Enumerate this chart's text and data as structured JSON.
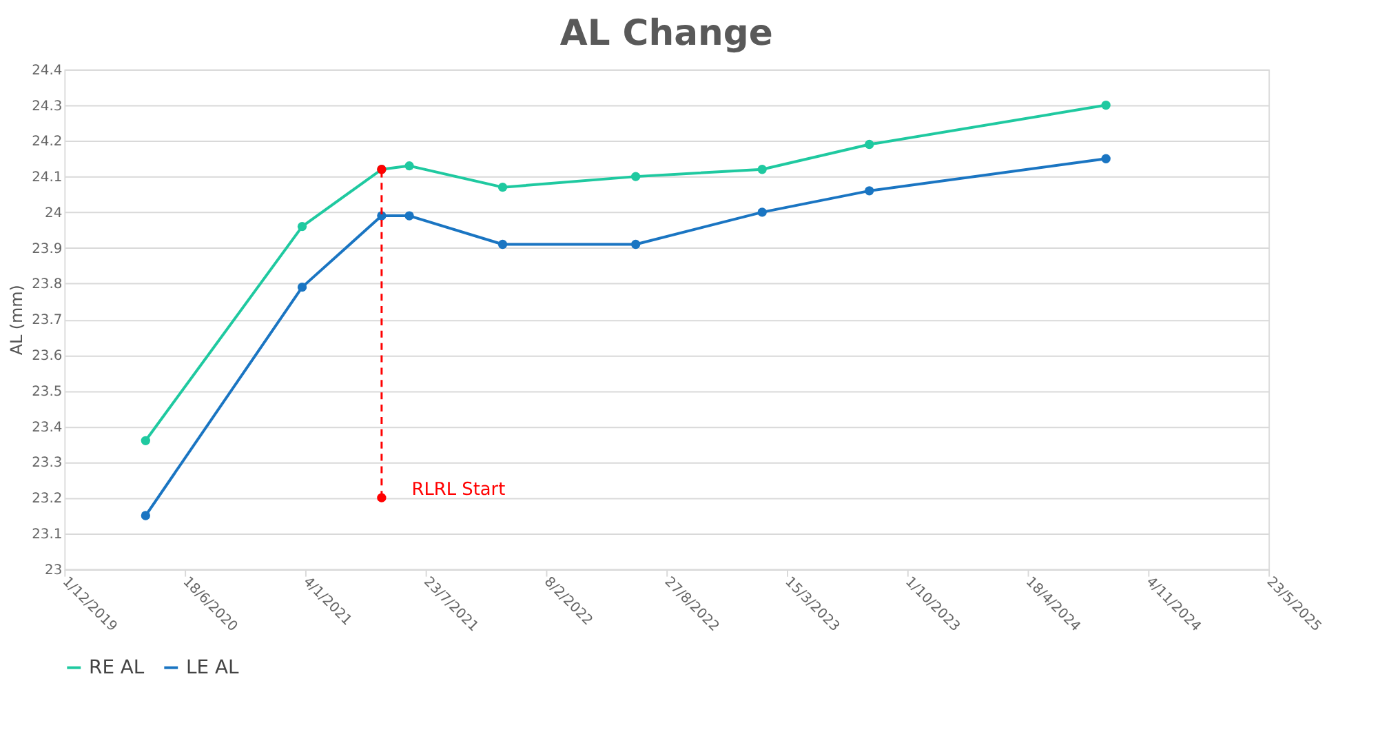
{
  "chart_data": {
    "type": "line",
    "title": "AL Change",
    "ylabel": "AL (mm)",
    "x": [
      "2020-04-14",
      "2020-12-30",
      "2021-05-11",
      "2021-06-26",
      "2021-11-28",
      "2022-07-07",
      "2023-02-02",
      "2023-07-30",
      "2024-08-26"
    ],
    "series": [
      {
        "name": "RE AL",
        "color": "#1fc9a0",
        "values": [
          23.36,
          23.96,
          24.12,
          24.13,
          24.07,
          24.1,
          24.12,
          24.19,
          24.3
        ]
      },
      {
        "name": "LE AL",
        "color": "#1a75c2",
        "values": [
          23.15,
          23.79,
          23.99,
          23.99,
          23.91,
          23.91,
          24.0,
          24.06,
          24.15
        ]
      },
      {
        "name": "RLRL Start",
        "color": "#ff0000",
        "x": [
          "2021-05-11",
          "2021-05-11"
        ],
        "values": [
          23.2,
          24.12
        ],
        "line_style": "dashed"
      }
    ],
    "xlim": [
      "2019-12-01",
      "2025-05-23"
    ],
    "xticks": [
      {
        "value": "2019-12-01",
        "label": "1/12/2019"
      },
      {
        "value": "2020-06-18",
        "label": "18/6/2020"
      },
      {
        "value": "2021-01-04",
        "label": "4/1/2021"
      },
      {
        "value": "2021-07-23",
        "label": "23/7/2021"
      },
      {
        "value": "2022-02-08",
        "label": "8/2/2022"
      },
      {
        "value": "2022-08-27",
        "label": "27/8/2022"
      },
      {
        "value": "2023-03-15",
        "label": "15/3/2023"
      },
      {
        "value": "2023-10-01",
        "label": "1/10/2023"
      },
      {
        "value": "2024-04-18",
        "label": "18/4/2024"
      },
      {
        "value": "2024-11-04",
        "label": "4/11/2024"
      },
      {
        "value": "2025-05-23",
        "label": "23/5/2025"
      }
    ],
    "ylim": [
      23,
      24.4
    ],
    "yticks": [
      23,
      23.1,
      23.2,
      23.3,
      23.4,
      23.5,
      23.6,
      23.7,
      23.8,
      23.9,
      24,
      24.1,
      24.2,
      24.3,
      24.4
    ],
    "grid": "y",
    "legend": "bottom",
    "marker": "circle",
    "line_style": "solid"
  }
}
